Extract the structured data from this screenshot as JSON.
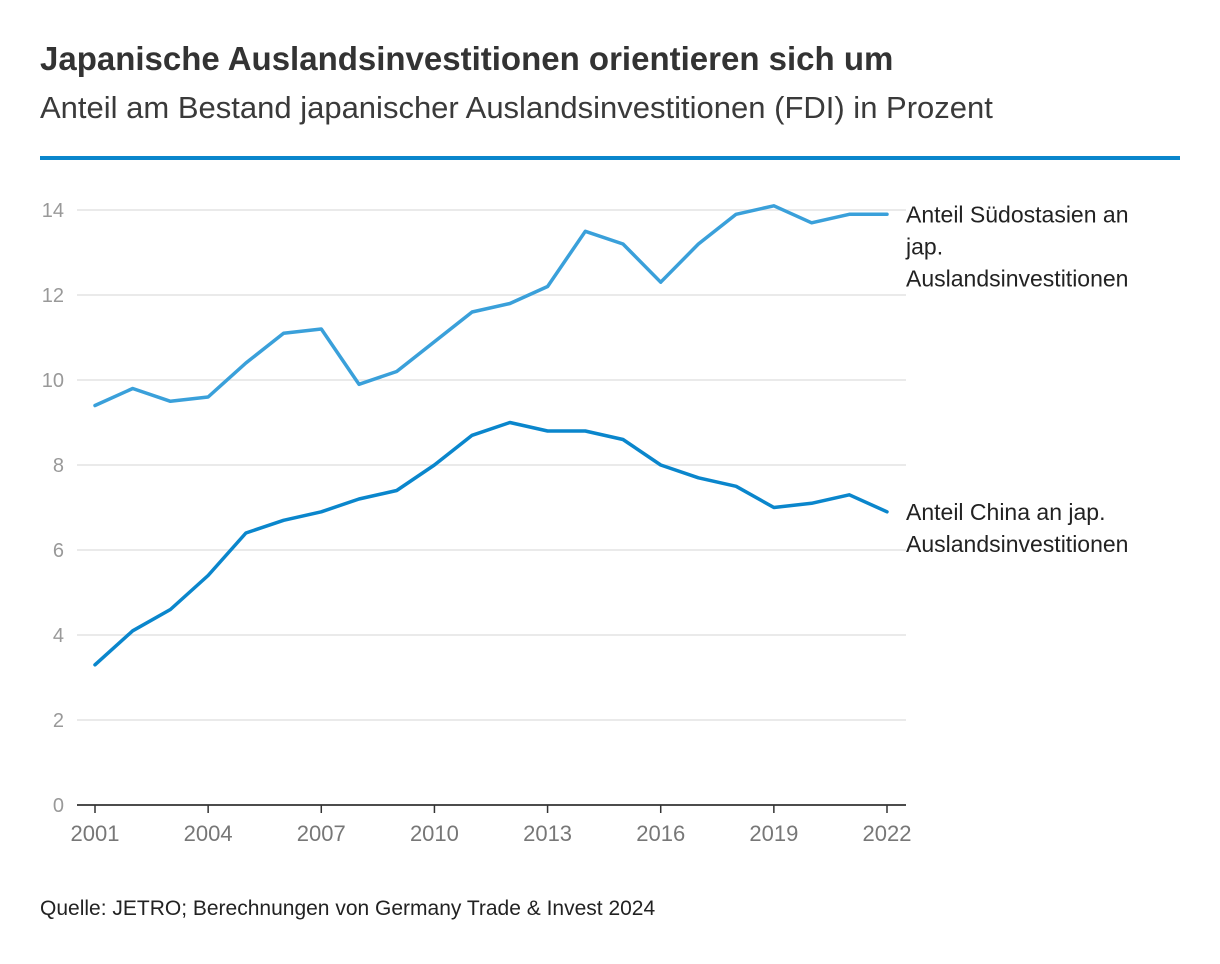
{
  "header": {
    "title": "Japanische Auslandsinvestitionen orientieren sich um",
    "subtitle": "Anteil am Bestand japanischer Auslandsinvestitionen (FDI) in Prozent"
  },
  "footer": {
    "source": "Quelle: JETRO; Berechnungen von Germany Trade & Invest 2024"
  },
  "colors": {
    "accent_rule": "#0a86cc",
    "grid": "#e3e3e3",
    "axis": "#333333"
  },
  "chart_data": {
    "type": "line",
    "title": "Japanische Auslandsinvestitionen orientieren sich um",
    "subtitle": "Anteil am Bestand japanischer Auslandsinvestitionen (FDI) in Prozent",
    "xlabel": "",
    "ylabel": "",
    "x": [
      2001,
      2002,
      2003,
      2004,
      2005,
      2006,
      2007,
      2008,
      2009,
      2010,
      2011,
      2012,
      2013,
      2014,
      2015,
      2016,
      2017,
      2018,
      2019,
      2020,
      2021,
      2022
    ],
    "xlim": [
      2001,
      2022
    ],
    "x_ticks": [
      "2001",
      "2004",
      "2007",
      "2010",
      "2013",
      "2016",
      "2019",
      "2022"
    ],
    "ylim": [
      0,
      14
    ],
    "y_ticks": [
      "0",
      "2",
      "4",
      "6",
      "8",
      "10",
      "12",
      "14"
    ],
    "grid": true,
    "legend": "direct labels at right end of lines",
    "series": [
      {
        "name": "Anteil Südostasien an jap. Auslandsinvestitionen",
        "label_lines": [
          "Anteil Südostasien an",
          "jap.",
          "Auslandsinvestitionen"
        ],
        "color": "#3aa0da",
        "values": [
          9.4,
          9.8,
          9.5,
          9.6,
          10.4,
          11.1,
          11.2,
          9.9,
          10.2,
          10.9,
          11.6,
          11.8,
          12.2,
          13.5,
          13.2,
          12.3,
          13.2,
          13.9,
          14.1,
          13.7,
          13.9,
          13.9
        ]
      },
      {
        "name": "Anteil China an jap. Auslandsinvestitionen",
        "label_lines": [
          "Anteil China an jap.",
          "Auslandsinvestitionen"
        ],
        "color": "#0a86cc",
        "values": [
          3.3,
          4.1,
          4.6,
          5.4,
          6.4,
          6.7,
          6.9,
          7.2,
          7.4,
          8.0,
          8.7,
          9.0,
          8.8,
          8.8,
          8.6,
          8.0,
          7.7,
          7.5,
          7.0,
          7.1,
          7.3,
          6.9
        ]
      }
    ]
  }
}
